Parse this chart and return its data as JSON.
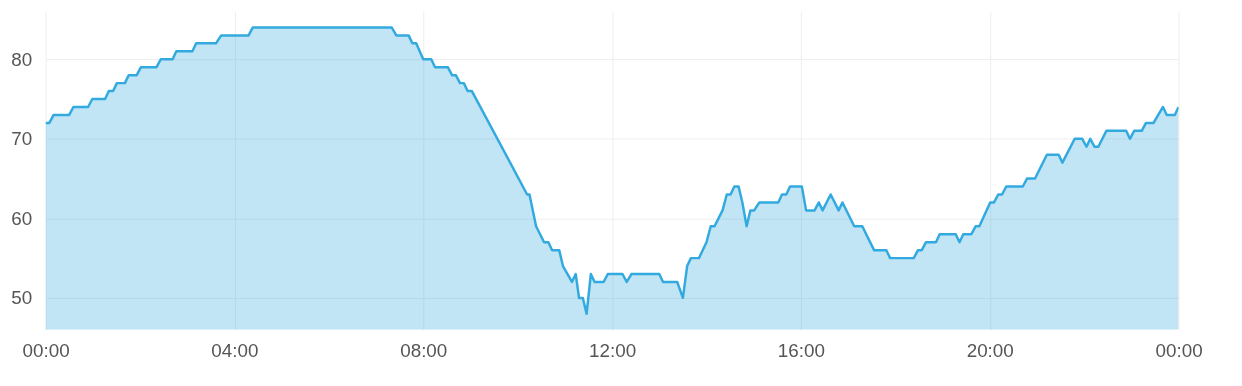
{
  "chart_data": {
    "type": "area",
    "x": [
      0,
      0.08,
      0.17,
      0.5,
      0.59,
      0.9,
      0.99,
      1.26,
      1.34,
      1.43,
      1.51,
      1.68,
      1.76,
      1.93,
      2.02,
      2.35,
      2.44,
      2.69,
      2.77,
      3.11,
      3.19,
      3.61,
      3.72,
      4.3,
      4.39,
      7.33,
      7.43,
      7.69,
      7.77,
      7.85,
      8.0,
      8.17,
      8.25,
      8.52,
      8.61,
      8.69,
      8.78,
      8.86,
      8.94,
      9.03,
      10.2,
      10.25,
      10.39,
      10.56,
      10.65,
      10.73,
      10.88,
      10.96,
      11.15,
      11.23,
      11.3,
      11.38,
      11.46,
      11.55,
      11.63,
      11.82,
      11.91,
      12.22,
      12.31,
      12.41,
      13.0,
      13.08,
      13.38,
      13.5,
      13.59,
      13.67,
      13.84,
      14.0,
      14.09,
      14.17,
      14.34,
      14.43,
      14.51,
      14.59,
      14.68,
      14.76,
      14.85,
      14.93,
      15.01,
      15.12,
      15.52,
      15.6,
      15.69,
      15.77,
      16.02,
      16.11,
      16.29,
      16.38,
      16.46,
      16.63,
      16.8,
      16.88,
      17.13,
      17.3,
      17.55,
      17.81,
      17.89,
      18.39,
      18.48,
      18.56,
      18.65,
      18.86,
      18.94,
      19.28,
      19.36,
      19.44,
      19.61,
      19.7,
      19.78,
      20.01,
      20.09,
      20.18,
      20.26,
      20.35,
      20.7,
      20.79,
      20.96,
      21.21,
      21.46,
      21.54,
      21.8,
      21.96,
      22.05,
      22.13,
      22.22,
      22.3,
      22.47,
      22.89,
      22.97,
      23.06,
      23.22,
      23.31,
      23.47,
      23.67,
      23.75,
      23.92,
      24.0
    ],
    "series": [
      {
        "color": "#33aadf",
        "values": [
          72,
          72,
          73,
          73,
          74,
          74,
          75,
          75,
          76,
          76,
          77,
          77,
          78,
          78,
          79,
          79,
          80,
          80,
          81,
          81,
          82,
          82,
          83,
          83,
          84,
          84,
          83,
          83,
          82,
          82,
          80,
          80,
          79,
          79,
          78,
          78,
          77,
          77,
          76,
          76,
          63,
          63,
          59,
          57,
          57,
          56,
          56,
          54,
          52,
          53,
          50,
          50,
          48,
          53,
          52,
          52,
          53,
          53,
          52,
          53,
          53,
          52,
          52,
          50,
          54,
          55,
          55,
          57,
          59,
          59,
          61,
          63,
          63,
          64,
          64,
          62,
          59,
          61,
          61,
          62,
          62,
          63,
          63,
          64,
          64,
          61,
          61,
          62,
          61,
          63,
          61,
          62,
          59,
          59,
          56,
          56,
          55,
          55,
          56,
          56,
          57,
          57,
          58,
          58,
          57,
          58,
          58,
          59,
          59,
          62,
          62,
          63,
          63,
          64,
          64,
          65,
          65,
          68,
          68,
          67,
          70,
          70,
          69,
          70,
          69,
          69,
          71,
          71,
          70,
          71,
          71,
          72,
          72,
          74,
          73,
          73,
          74
        ]
      }
    ],
    "xlim": [
      0,
      24
    ],
    "xticks": [
      {
        "value": 0,
        "label": "00:00"
      },
      {
        "value": 4,
        "label": "04:00"
      },
      {
        "value": 8,
        "label": "08:00"
      },
      {
        "value": 12,
        "label": "12:00"
      },
      {
        "value": 16,
        "label": "16:00"
      },
      {
        "value": 20,
        "label": "20:00"
      },
      {
        "value": 24,
        "label": "00:00"
      }
    ],
    "ylim": [
      46,
      86
    ],
    "yticks": [
      50,
      60,
      70,
      80
    ],
    "grid": true
  }
}
